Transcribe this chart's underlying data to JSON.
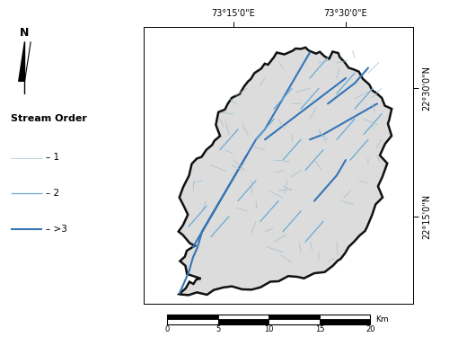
{
  "background_color": "#ffffff",
  "watershed_fill": "#dcdcdc",
  "watershed_edge": "#111111",
  "watershed_lw": 1.8,
  "xtick_positions": [
    73.25,
    73.5
  ],
  "ytick_positions": [
    22.25,
    22.5
  ],
  "xtick_labels": [
    "73°15'0\"E",
    "73°30'0\"E"
  ],
  "ytick_labels": [
    "22°15'0\"N",
    "22°30'0\"N"
  ],
  "legend_title": "Stream Order",
  "legend_entries": [
    "1",
    "2",
    ">3"
  ],
  "stream_colors": {
    "1": "#a0bfd0",
    "2": "#6aaad4",
    "3": "#3575b5"
  },
  "stream_linewidths": {
    "1": 0.5,
    "2": 0.9,
    "3": 1.5
  },
  "scalebar_labels": [
    "0",
    "5",
    "10",
    "15",
    "20"
  ],
  "scalebar_unit": "Km",
  "lon_min": 73.05,
  "lon_max": 73.65,
  "lat_min": 22.08,
  "lat_max": 22.62
}
